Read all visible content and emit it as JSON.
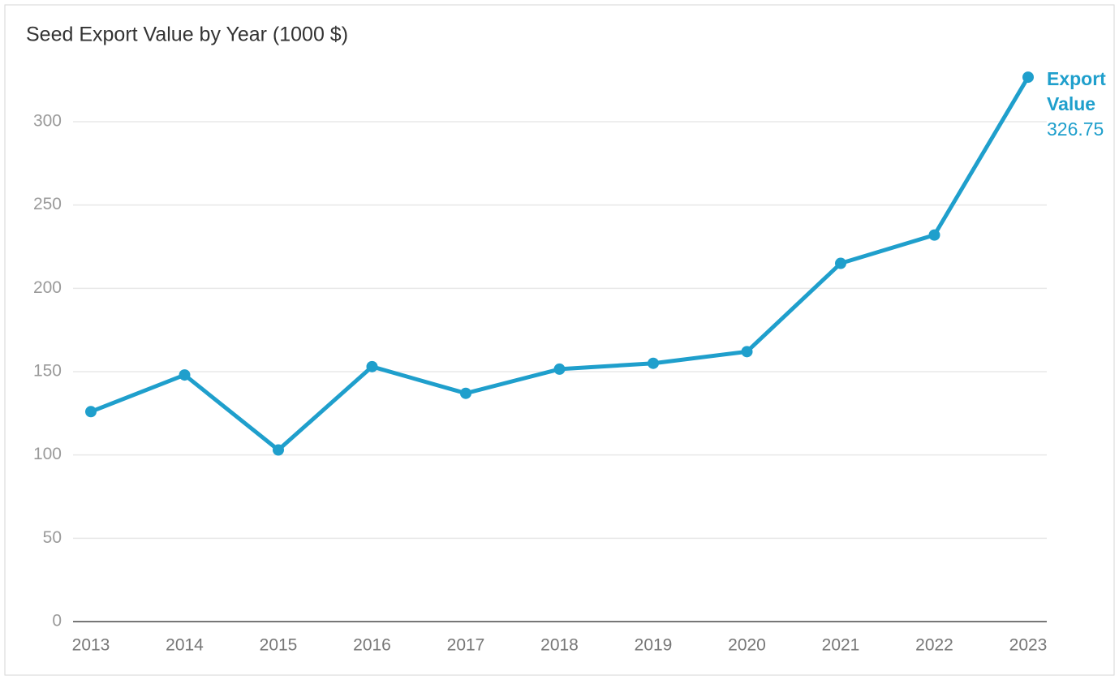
{
  "chart_data": {
    "type": "line",
    "title": "Seed Export Value by Year (1000 $)",
    "categories": [
      "2013",
      "2014",
      "2015",
      "2016",
      "2017",
      "2018",
      "2019",
      "2020",
      "2021",
      "2022",
      "2023"
    ],
    "series": [
      {
        "name": "Export Value",
        "color": "#1f9fcc",
        "values": [
          126,
          148,
          103,
          153,
          137,
          151.5,
          155,
          162,
          215,
          232,
          326.75
        ]
      }
    ],
    "ylim": [
      0,
      330
    ],
    "yticks": [
      0,
      50,
      100,
      150,
      200,
      250,
      300
    ],
    "grid": true
  }
}
